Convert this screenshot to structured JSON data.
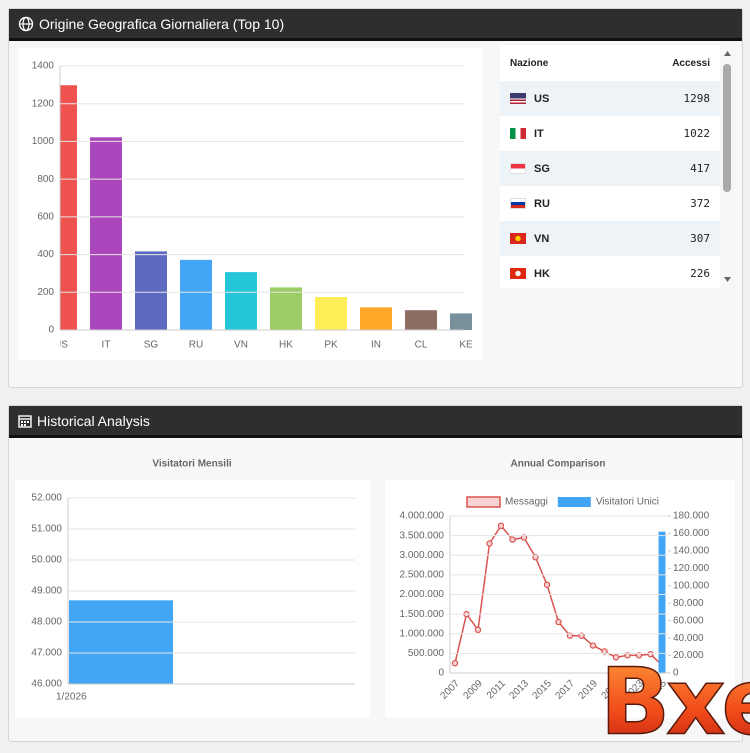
{
  "panel_top": {
    "title": "Origine Geografica Giornaliera (Top 10)"
  },
  "panel_bottom": {
    "title": "Historical Analysis"
  },
  "table": {
    "headers": [
      "Nazione",
      "Accessi"
    ],
    "rows": [
      [
        "US",
        1298
      ],
      [
        "IT",
        1022
      ],
      [
        "SG",
        417
      ],
      [
        "RU",
        372
      ],
      [
        "VN",
        307
      ],
      [
        "HK",
        226
      ]
    ]
  },
  "watermark": "Bxen",
  "chart_data": [
    {
      "type": "bar",
      "categories": [
        "US",
        "IT",
        "SG",
        "RU",
        "VN",
        "HK",
        "PK",
        "IN",
        "CL",
        "KE"
      ],
      "values": [
        1298,
        1022,
        417,
        372,
        307,
        226,
        175,
        120,
        105,
        88
      ],
      "colors": [
        "#ef5350",
        "#ab47bc",
        "#5c6bc0",
        "#42a5f5",
        "#26c6da",
        "#9ccc65",
        "#ffee58",
        "#ffa726",
        "#8d6e63",
        "#78909c"
      ],
      "ylim": [
        0,
        1400
      ],
      "yticks": [
        0,
        200,
        400,
        600,
        800,
        1000,
        1200,
        1400
      ],
      "grid": true
    },
    {
      "type": "bar",
      "title": "Visitatori Mensili",
      "categories": [
        "1/2026"
      ],
      "values": [
        48700
      ],
      "color": "#42a5f5",
      "ylim": [
        46000,
        52000
      ],
      "yticks": [
        {
          "value": 46000,
          "label": "46.000"
        },
        {
          "value": 47000,
          "label": "47.000"
        },
        {
          "value": 48000,
          "label": "48.000"
        },
        {
          "value": 49000,
          "label": "49.000"
        },
        {
          "value": 50000,
          "label": "50.000"
        },
        {
          "value": 51000,
          "label": "51.000"
        },
        {
          "value": 52000,
          "label": "52.000"
        }
      ],
      "grid": true
    },
    {
      "type": "combo",
      "title": "Annual Comparison",
      "categories": [
        "2007",
        null,
        "2009",
        null,
        "2011",
        null,
        "2013",
        null,
        "2015",
        null,
        "2017",
        null,
        "2019",
        null,
        "2021",
        null,
        "2023",
        null,
        "2025"
      ],
      "series": [
        {
          "name": "Messaggi",
          "type": "line",
          "color": "#d9534f",
          "values": [
            250000,
            1500000,
            1100000,
            3300000,
            3750000,
            3400000,
            3450000,
            2950000,
            2250000,
            1300000,
            950000,
            950000,
            700000,
            550000,
            400000,
            450000,
            450000,
            480000,
            200000
          ]
        },
        {
          "name": "Visitatori Unici",
          "type": "bar",
          "axis": "y2",
          "color": "#42a5f5",
          "values": [
            null,
            null,
            null,
            null,
            null,
            null,
            null,
            null,
            null,
            null,
            null,
            null,
            null,
            null,
            null,
            null,
            null,
            null,
            162000
          ]
        }
      ],
      "ylim": [
        0,
        4000000
      ],
      "yticks": [
        0,
        {
          "value": 500000,
          "label": "500.000"
        },
        {
          "value": 1000000,
          "label": "1.000.000"
        },
        {
          "value": 1500000,
          "label": "1.500.000"
        },
        {
          "value": 2000000,
          "label": "2.000.000"
        },
        {
          "value": 2500000,
          "label": "2.500.000"
        },
        {
          "value": 3000000,
          "label": "3.000.000"
        },
        {
          "value": 3500000,
          "label": "3.500.000"
        },
        {
          "value": 4000000,
          "label": "4.000.000"
        }
      ],
      "y2lim": [
        0,
        180000
      ],
      "y2ticks": [
        0,
        {
          "value": 20000,
          "label": "20.000"
        },
        {
          "value": 40000,
          "label": "40.000"
        },
        {
          "value": 60000,
          "label": "60.000"
        },
        {
          "value": 80000,
          "label": "80.000"
        },
        {
          "value": 100000,
          "label": "100.000"
        },
        {
          "value": 120000,
          "label": "120.000"
        },
        {
          "value": 140000,
          "label": "140.000"
        },
        {
          "value": 160000,
          "label": "160.000"
        },
        {
          "value": 180000,
          "label": "180.000"
        }
      ],
      "grid": true,
      "legend": "top"
    }
  ]
}
